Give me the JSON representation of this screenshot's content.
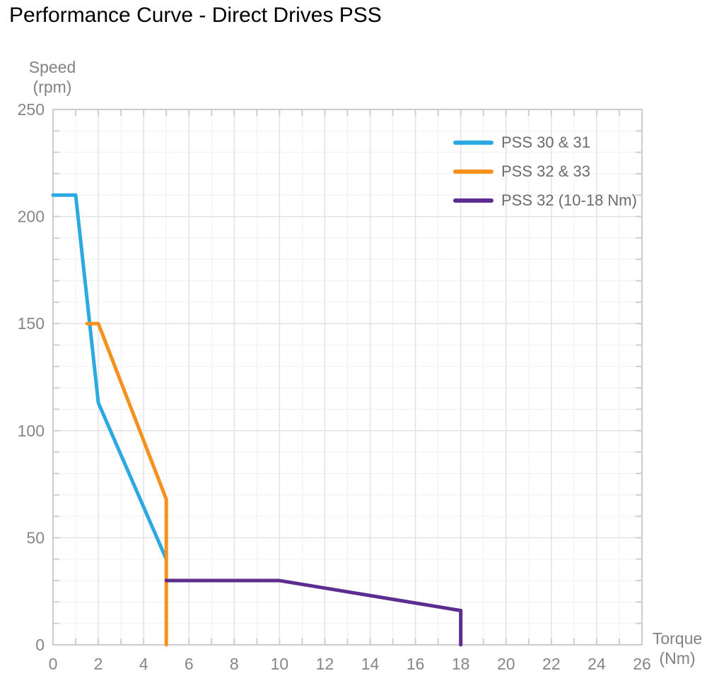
{
  "title": "Performance Curve - Direct Drives PSS",
  "colors": {
    "title_text": "#000000",
    "axis_text": "#828282",
    "tick_text": "#868686",
    "legend_text": "#6b6b6b",
    "plot_border": "#cccccc",
    "tick_mark": "#cfcfcf",
    "grid_major": "#e2e2e2",
    "grid_minor": "#f1f1f1",
    "series_blue": "#2BA9E0",
    "series_orange": "#F5921E",
    "series_purple": "#5C2D8F"
  },
  "chart_data": {
    "type": "line",
    "title": "Performance Curve - Direct Drives PSS",
    "xlabel": "Torque (Nm)",
    "ylabel": "Speed (rpm)",
    "xlabel_lines": [
      "Torque",
      "(Nm)"
    ],
    "ylabel_lines": [
      "Speed",
      "(rpm)"
    ],
    "xlim": [
      0,
      26
    ],
    "ylim": [
      0,
      250
    ],
    "x_ticks": [
      0,
      2,
      4,
      6,
      8,
      10,
      12,
      14,
      16,
      18,
      20,
      22,
      24,
      26
    ],
    "y_ticks": [
      0,
      50,
      100,
      150,
      200,
      250
    ],
    "x_minor_step": 1,
    "x_major_step": 2,
    "y_minor_step": 10,
    "y_major_step": 50,
    "grid": true,
    "legend_position": "top-right",
    "series": [
      {
        "name": "PSS 30 & 31",
        "color": "#2BA9E0",
        "points": [
          [
            0,
            210
          ],
          [
            1,
            210
          ],
          [
            2,
            113
          ],
          [
            5,
            40
          ]
        ]
      },
      {
        "name": "PSS 32 & 33",
        "color": "#F5921E",
        "points": [
          [
            1.5,
            150
          ],
          [
            2,
            150
          ],
          [
            5,
            68
          ],
          [
            5,
            0
          ]
        ]
      },
      {
        "name": "PSS 32 (10-18 Nm)",
        "color": "#5C2D8F",
        "points": [
          [
            5,
            30
          ],
          [
            10,
            30
          ],
          [
            18,
            16
          ],
          [
            18,
            0
          ]
        ]
      }
    ]
  }
}
